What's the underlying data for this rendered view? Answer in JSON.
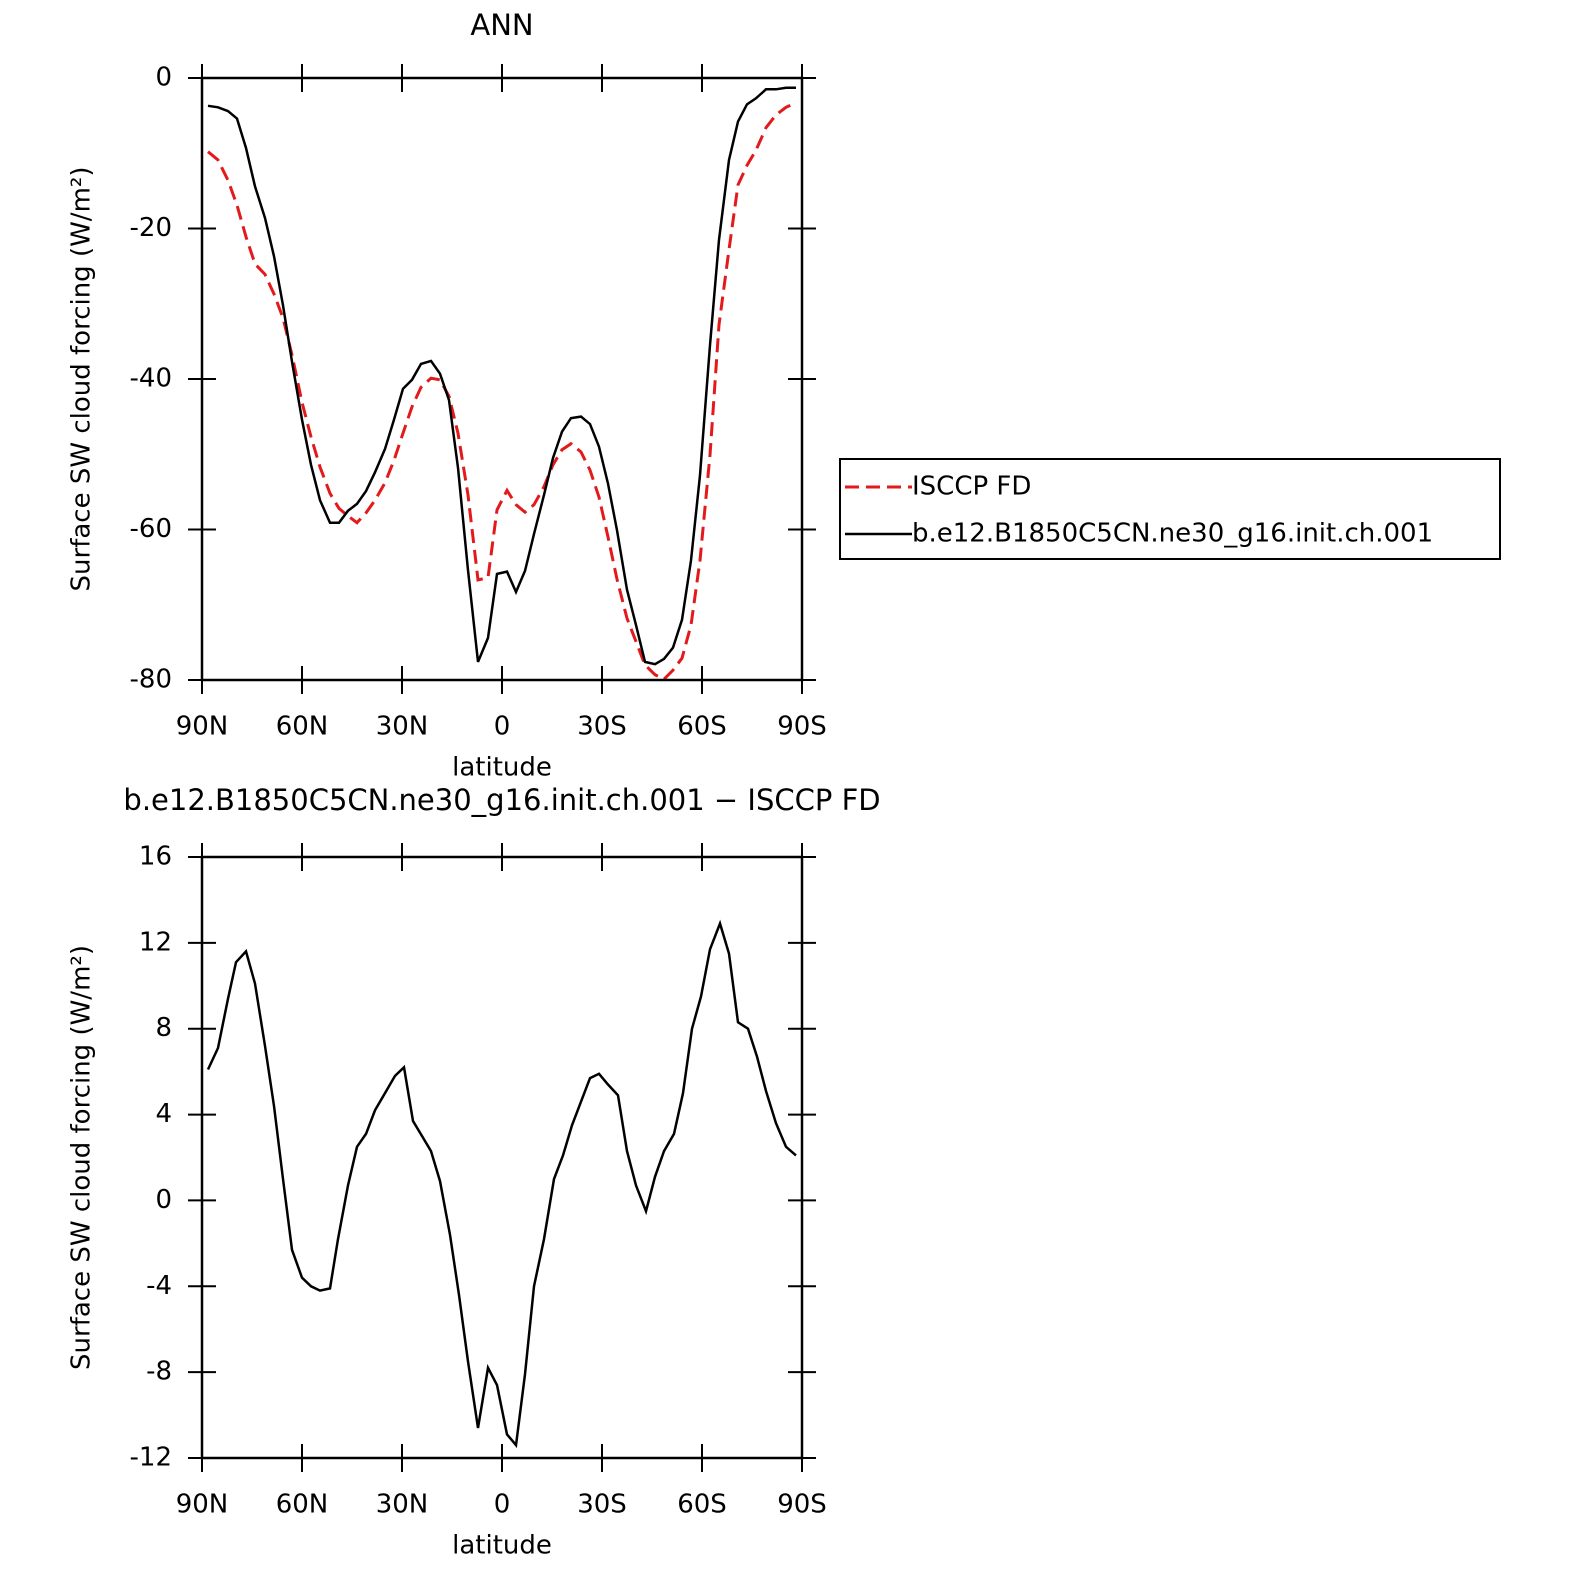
{
  "chart_data": [
    {
      "type": "line",
      "title": "ANN",
      "xlabel": "latitude",
      "ylabel": "Surface SW cloud forcing (W/m²)",
      "xlim": [
        90,
        -90
      ],
      "ylim": [
        -80,
        0
      ],
      "xticks": [
        {
          "value": 90,
          "label": "90N"
        },
        {
          "value": 60,
          "label": "60N"
        },
        {
          "value": 30,
          "label": "30N"
        },
        0,
        {
          "value": -30,
          "label": "30S"
        },
        {
          "value": -60,
          "label": "60S"
        },
        {
          "value": -90,
          "label": "90S"
        }
      ],
      "yticks": [
        -80,
        -60,
        -40,
        -20,
        0
      ],
      "legend": "outside right",
      "x": [
        88.2,
        85.2,
        82.2,
        79.5,
        76.8,
        74.1,
        71.1,
        68.4,
        65.7,
        63,
        60,
        57.3,
        54.6,
        51.6,
        48.9,
        46.2,
        43.5,
        40.8,
        38.1,
        35.1,
        32.4,
        29.7,
        27,
        24.3,
        21.3,
        18.6,
        15.9,
        13.2,
        10.2,
        7.2,
        4.2,
        1.5,
        -1.5,
        -4.2,
        -6.9,
        -9.6,
        -12.6,
        -15.3,
        -18,
        -20.7,
        -23.7,
        -26.4,
        -29.1,
        -31.8,
        -34.5,
        -37.5,
        -40.2,
        -42.9,
        -45.9,
        -48.6,
        -51.3,
        -54,
        -56.7,
        -59.4,
        -62.4,
        -65.1,
        -68.1,
        -70.8,
        -73.5,
        -76.2,
        -79.2,
        -82.2,
        -85.2,
        -88.2
      ],
      "series": [
        {
          "name": "ISCCP FD",
          "color": "#e31a1c",
          "linestyle": "dashed",
          "values": [
            -9.8,
            -10.9,
            -13.6,
            -16.9,
            -21.1,
            -24.7,
            -26.1,
            -28.7,
            -31.9,
            -36.8,
            -43.1,
            -47.7,
            -51.7,
            -55.2,
            -57.2,
            -58.2,
            -59.1,
            -57.8,
            -56.1,
            -53.8,
            -50.8,
            -47.2,
            -43.7,
            -41.1,
            -39.9,
            -40.1,
            -42.3,
            -47.2,
            -55.4,
            -66.7,
            -66.4,
            -57.4,
            -54.8,
            -56.7,
            -57.7,
            -56.7,
            -54.3,
            -51.4,
            -49.4,
            -48.6,
            -49.7,
            -52.1,
            -55.7,
            -61.0,
            -66.6,
            -71.8,
            -74.9,
            -78.0,
            -79.3,
            -79.9,
            -78.7,
            -77.1,
            -72.7,
            -64.1,
            -50.1,
            -32.8,
            -22.8,
            -14.2,
            -11.6,
            -9.6,
            -6.6,
            -4.9,
            -3.9,
            -3.3
          ]
        },
        {
          "name": "b.e12.B1850C5CN.ne30_g16.init.ch.001",
          "color": "#000000",
          "linestyle": "solid",
          "values": [
            -3.7,
            -3.9,
            -4.4,
            -5.4,
            -9.3,
            -14.4,
            -18.6,
            -23.7,
            -30.2,
            -37.7,
            -45.4,
            -51.4,
            -56.1,
            -59.1,
            -59.1,
            -57.5,
            -56.6,
            -54.9,
            -52.4,
            -49.3,
            -45.4,
            -41.3,
            -40.1,
            -38.0,
            -37.6,
            -39.3,
            -42.8,
            -51.8,
            -65.4,
            -77.6,
            -74.4,
            -65.9,
            -65.6,
            -68.3,
            -65.5,
            -60.6,
            -55.4,
            -50.5,
            -47.0,
            -45.2,
            -45.0,
            -46.0,
            -49.0,
            -53.9,
            -60.1,
            -68.0,
            -72.7,
            -77.6,
            -77.9,
            -77.2,
            -75.7,
            -72.0,
            -64.1,
            -52.8,
            -35.5,
            -21.5,
            -10.9,
            -5.8,
            -3.5,
            -2.7,
            -1.5,
            -1.5,
            -1.3,
            -1.3
          ]
        }
      ]
    },
    {
      "type": "line",
      "title": "b.e12.B1850C5CN.ne30_g16.init.ch.001 − ISCCP FD",
      "xlabel": "latitude",
      "ylabel": "Surface SW cloud forcing (W/m²)",
      "xlim": [
        90,
        -90
      ],
      "ylim": [
        -12,
        16
      ],
      "xticks": [
        {
          "value": 90,
          "label": "90N"
        },
        {
          "value": 60,
          "label": "60N"
        },
        {
          "value": 30,
          "label": "30N"
        },
        0,
        {
          "value": -30,
          "label": "30S"
        },
        {
          "value": -60,
          "label": "60S"
        },
        {
          "value": -90,
          "label": "90S"
        }
      ],
      "yticks": [
        -12,
        -8,
        -4,
        0,
        4,
        8,
        12,
        16
      ],
      "x": [
        88.2,
        85.2,
        82.2,
        79.8,
        76.8,
        74.1,
        71.1,
        68.4,
        65.7,
        63,
        60,
        57.3,
        54.6,
        51.6,
        49.2,
        46.2,
        43.5,
        40.8,
        38.1,
        35.1,
        32.1,
        29.4,
        26.7,
        24,
        21.3,
        18.6,
        15.6,
        12.9,
        10.2,
        7.2,
        4.2,
        1.5,
        -1.5,
        -4.2,
        -6.9,
        -9.6,
        -12.6,
        -15.6,
        -18.3,
        -21,
        -23.7,
        -26.4,
        -29.1,
        -31.8,
        -34.8,
        -37.5,
        -40.2,
        -43.2,
        -45.9,
        -48.6,
        -51.6,
        -54.3,
        -57,
        -59.7,
        -62.4,
        -65.4,
        -68.1,
        -70.8,
        -73.8,
        -76.5,
        -79.2,
        -82.2,
        -85.2,
        -88.2
      ],
      "series": [
        {
          "color": "#000000",
          "linestyle": "solid",
          "values": [
            6.1,
            7.1,
            9.4,
            11.1,
            11.6,
            10.1,
            7.2,
            4.4,
            1.0,
            -2.3,
            -3.6,
            -4.0,
            -4.2,
            -4.1,
            -1.8,
            0.7,
            2.5,
            3.1,
            4.2,
            5.0,
            5.8,
            6.2,
            3.7,
            3.0,
            2.3,
            0.9,
            -1.6,
            -4.4,
            -7.5,
            -10.6,
            -7.8,
            -8.6,
            -10.9,
            -11.4,
            -8.1,
            -4.0,
            -1.8,
            1.0,
            2.1,
            3.5,
            4.6,
            5.7,
            5.9,
            5.4,
            4.9,
            2.3,
            0.7,
            -0.5,
            1.1,
            2.3,
            3.1,
            5.0,
            8.0,
            9.5,
            11.7,
            12.9,
            11.5,
            8.3,
            8.0,
            6.7,
            5.1,
            3.6,
            2.5,
            2.1
          ]
        }
      ]
    }
  ]
}
